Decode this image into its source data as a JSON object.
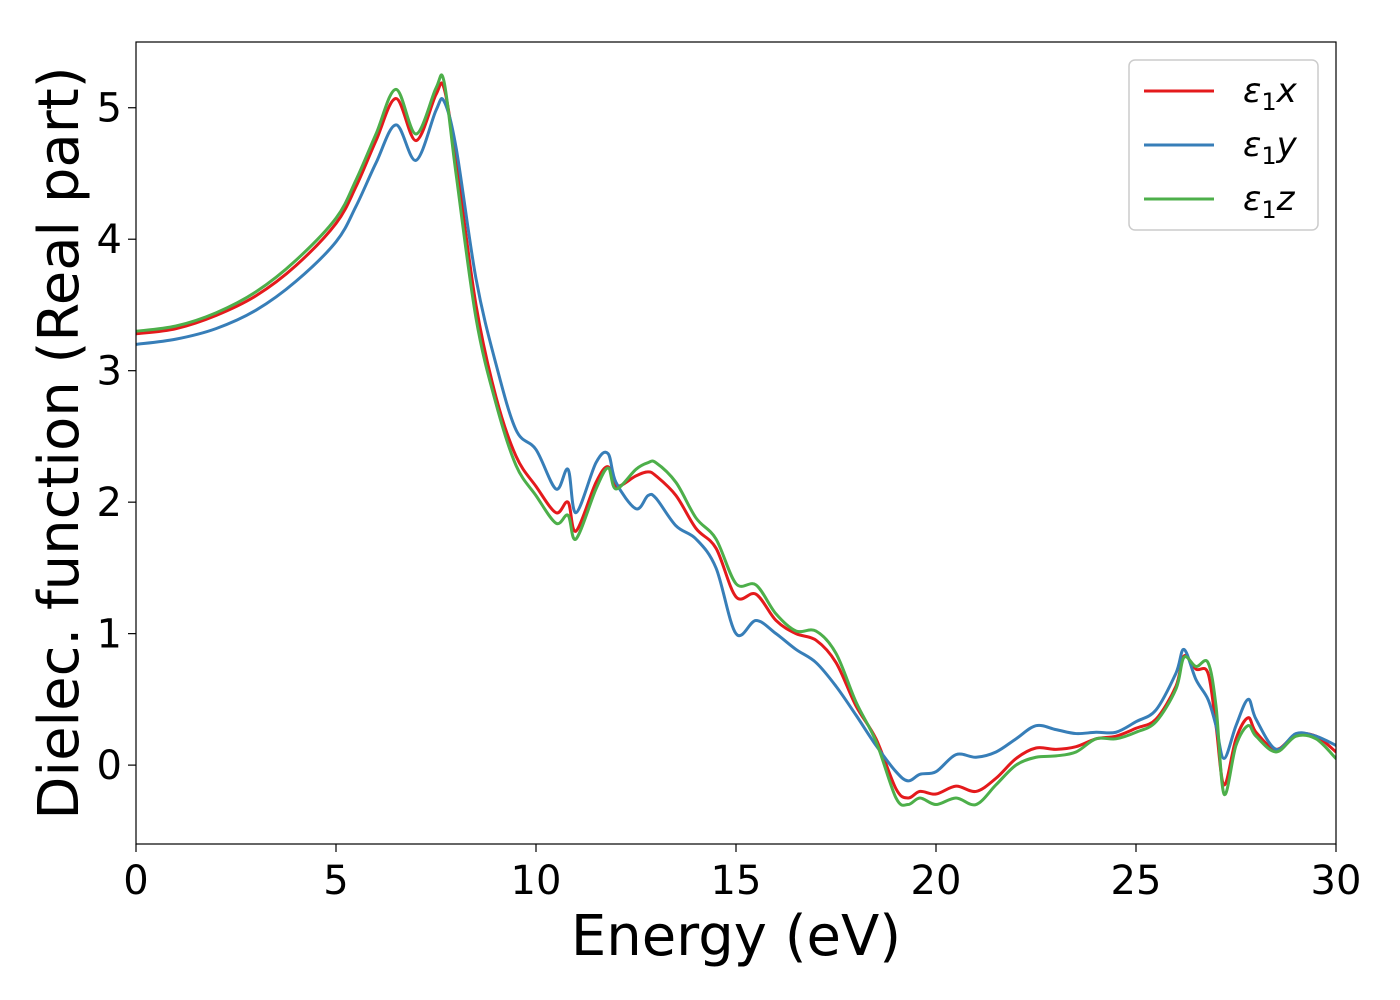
{
  "chart_data": {
    "type": "line",
    "xlabel": "Energy (eV)",
    "ylabel": "Dielec. function (Real part)",
    "xlim": [
      0,
      30
    ],
    "ylim": [
      -0.6,
      5.5
    ],
    "xticks": [
      0,
      5,
      10,
      15,
      20,
      25,
      30
    ],
    "yticks": [
      0,
      1,
      2,
      3,
      4,
      5
    ],
    "xtick_labels": [
      "0",
      "5",
      "10",
      "15",
      "20",
      "25",
      "30"
    ],
    "ytick_labels": [
      "0",
      "1",
      "2",
      "3",
      "4",
      "5"
    ],
    "grid": false,
    "legend_position": "top-right",
    "series": [
      {
        "name": "ε₁x",
        "legend_main": "ε",
        "legend_sub": "1",
        "legend_suffix": "x",
        "color": "#e41a1c",
        "x": [
          0,
          1,
          2,
          3,
          4,
          5,
          5.5,
          6,
          6.5,
          7,
          7.5,
          7.7,
          8,
          8.5,
          9,
          9.5,
          10,
          10.5,
          10.8,
          11,
          11.5,
          11.8,
          12,
          12.5,
          12.8,
          13,
          13.5,
          14,
          14.5,
          15,
          15.5,
          16,
          16.5,
          17,
          17.5,
          18,
          18.5,
          19,
          19.3,
          19.6,
          20,
          20.5,
          21,
          21.5,
          22,
          22.5,
          23,
          23.5,
          24,
          24.5,
          25,
          25.5,
          26,
          26.2,
          26.5,
          26.8,
          27,
          27.2,
          27.5,
          27.8,
          28,
          28.5,
          29,
          29.5,
          30
        ],
        "y": [
          3.28,
          3.32,
          3.42,
          3.57,
          3.8,
          4.12,
          4.4,
          4.75,
          5.07,
          4.75,
          5.1,
          5.15,
          4.6,
          3.5,
          2.8,
          2.35,
          2.12,
          1.92,
          2.0,
          1.78,
          2.15,
          2.27,
          2.12,
          2.2,
          2.23,
          2.2,
          2.05,
          1.8,
          1.65,
          1.28,
          1.3,
          1.1,
          1.0,
          0.95,
          0.78,
          0.45,
          0.2,
          -0.18,
          -0.25,
          -0.2,
          -0.22,
          -0.16,
          -0.2,
          -0.1,
          0.05,
          0.13,
          0.12,
          0.14,
          0.2,
          0.22,
          0.28,
          0.35,
          0.6,
          0.83,
          0.73,
          0.7,
          0.3,
          -0.15,
          0.2,
          0.36,
          0.25,
          0.12,
          0.23,
          0.22,
          0.1
        ]
      },
      {
        "name": "ε₁y",
        "legend_main": "ε",
        "legend_sub": "1",
        "legend_suffix": "y",
        "color": "#377eb8",
        "x": [
          0,
          1,
          2,
          3,
          4,
          5,
          5.5,
          6,
          6.5,
          7,
          7.5,
          7.7,
          8,
          8.5,
          9,
          9.5,
          10,
          10.5,
          10.8,
          11,
          11.5,
          11.8,
          12,
          12.5,
          12.8,
          13,
          13.5,
          14,
          14.5,
          15,
          15.5,
          16,
          16.5,
          17,
          17.5,
          18,
          18.5,
          19,
          19.3,
          19.6,
          20,
          20.5,
          21,
          21.5,
          22,
          22.5,
          23,
          23.5,
          24,
          24.5,
          25,
          25.5,
          26,
          26.2,
          26.5,
          26.8,
          27,
          27.2,
          27.5,
          27.8,
          28,
          28.5,
          29,
          29.5,
          30
        ],
        "y": [
          3.2,
          3.24,
          3.32,
          3.46,
          3.68,
          3.98,
          4.25,
          4.58,
          4.87,
          4.6,
          4.98,
          5.05,
          4.7,
          3.7,
          3.05,
          2.55,
          2.4,
          2.1,
          2.25,
          1.92,
          2.3,
          2.37,
          2.15,
          1.95,
          2.05,
          2.03,
          1.82,
          1.72,
          1.5,
          1.0,
          1.1,
          1.0,
          0.88,
          0.78,
          0.6,
          0.38,
          0.15,
          -0.05,
          -0.12,
          -0.07,
          -0.05,
          0.08,
          0.06,
          0.1,
          0.2,
          0.3,
          0.27,
          0.24,
          0.25,
          0.25,
          0.33,
          0.42,
          0.7,
          0.88,
          0.65,
          0.5,
          0.3,
          0.05,
          0.3,
          0.5,
          0.35,
          0.12,
          0.24,
          0.22,
          0.15
        ]
      },
      {
        "name": "ε₁z",
        "legend_main": "ε",
        "legend_sub": "1",
        "legend_suffix": "z",
        "color": "#4daf4a",
        "x": [
          0,
          1,
          2,
          3,
          4,
          5,
          5.5,
          6,
          6.5,
          7,
          7.5,
          7.7,
          8,
          8.5,
          9,
          9.5,
          10,
          10.5,
          10.8,
          11,
          11.5,
          11.8,
          12,
          12.5,
          12.8,
          13,
          13.5,
          14,
          14.5,
          15,
          15.5,
          16,
          16.5,
          17,
          17.5,
          18,
          18.5,
          19,
          19.3,
          19.6,
          20,
          20.5,
          21,
          21.5,
          22,
          22.5,
          23,
          23.5,
          24,
          24.5,
          25,
          25.5,
          26,
          26.2,
          26.5,
          26.8,
          27,
          27.2,
          27.5,
          27.8,
          28,
          28.5,
          29,
          29.5,
          30
        ],
        "y": [
          3.3,
          3.34,
          3.44,
          3.6,
          3.84,
          4.16,
          4.45,
          4.8,
          5.14,
          4.8,
          5.15,
          5.2,
          4.5,
          3.4,
          2.75,
          2.28,
          2.05,
          1.84,
          1.9,
          1.72,
          2.1,
          2.26,
          2.1,
          2.25,
          2.3,
          2.3,
          2.15,
          1.88,
          1.72,
          1.38,
          1.37,
          1.15,
          1.02,
          1.02,
          0.85,
          0.48,
          0.18,
          -0.25,
          -0.3,
          -0.25,
          -0.3,
          -0.25,
          -0.3,
          -0.15,
          0.0,
          0.06,
          0.07,
          0.1,
          0.2,
          0.2,
          0.25,
          0.33,
          0.58,
          0.82,
          0.75,
          0.78,
          0.45,
          -0.22,
          0.15,
          0.3,
          0.22,
          0.1,
          0.22,
          0.2,
          0.05
        ]
      }
    ]
  }
}
